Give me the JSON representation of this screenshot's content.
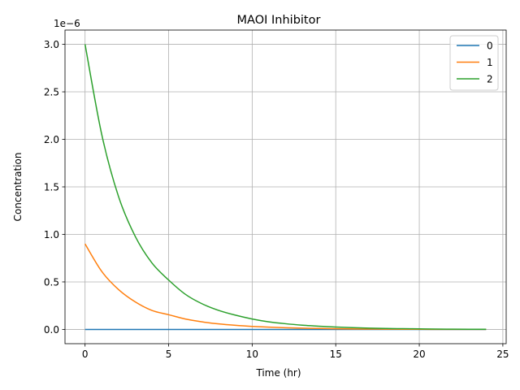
{
  "chart_data": {
    "type": "line",
    "title": "MAOI Inhibitor",
    "xlabel": "Time (hr)",
    "ylabel": "Concentration",
    "y_offset_text": "1e−6",
    "xlim": [
      -1.2,
      25.2
    ],
    "ylim": [
      -0.15,
      3.15
    ],
    "y_multiplier": 1e-06,
    "xticks": [
      0,
      5,
      10,
      15,
      20,
      25
    ],
    "xtick_labels": [
      "0",
      "5",
      "10",
      "15",
      "20",
      "25"
    ],
    "yticks": [
      0.0,
      0.5,
      1.0,
      1.5,
      2.0,
      2.5,
      3.0
    ],
    "ytick_labels": [
      "0.0",
      "0.5",
      "1.0",
      "1.5",
      "2.0",
      "2.5",
      "3.0"
    ],
    "grid": true,
    "legend_position": "top-right",
    "x": [
      0,
      1,
      2,
      3,
      4,
      5,
      6,
      7,
      8,
      9,
      10,
      11,
      12,
      13,
      14,
      15,
      16,
      17,
      18,
      19,
      20,
      21,
      22,
      23,
      24
    ],
    "series": [
      {
        "name": "0",
        "color": "#1f77b4",
        "values": [
          0,
          0,
          0,
          0,
          0,
          0,
          0,
          0,
          0,
          0,
          0,
          0,
          0,
          0,
          0,
          0,
          0,
          0,
          0,
          0,
          0,
          0,
          0,
          0,
          0
        ]
      },
      {
        "name": "1",
        "color": "#ff7f0e",
        "values": [
          0.9,
          0.61,
          0.42,
          0.29,
          0.2,
          0.155,
          0.11,
          0.08,
          0.058,
          0.043,
          0.032,
          0.024,
          0.018,
          0.013,
          0.01,
          0.007,
          0.005,
          0.004,
          0.003,
          0.002,
          0.0015,
          0.001,
          0.0008,
          0.0006,
          0.0004
        ]
      },
      {
        "name": "2",
        "color": "#2ca02c",
        "values": [
          3.0,
          2.05,
          1.4,
          0.98,
          0.7,
          0.52,
          0.37,
          0.27,
          0.2,
          0.15,
          0.11,
          0.08,
          0.06,
          0.045,
          0.034,
          0.025,
          0.019,
          0.014,
          0.01,
          0.008,
          0.006,
          0.004,
          0.003,
          0.002,
          0.0015
        ]
      }
    ]
  }
}
